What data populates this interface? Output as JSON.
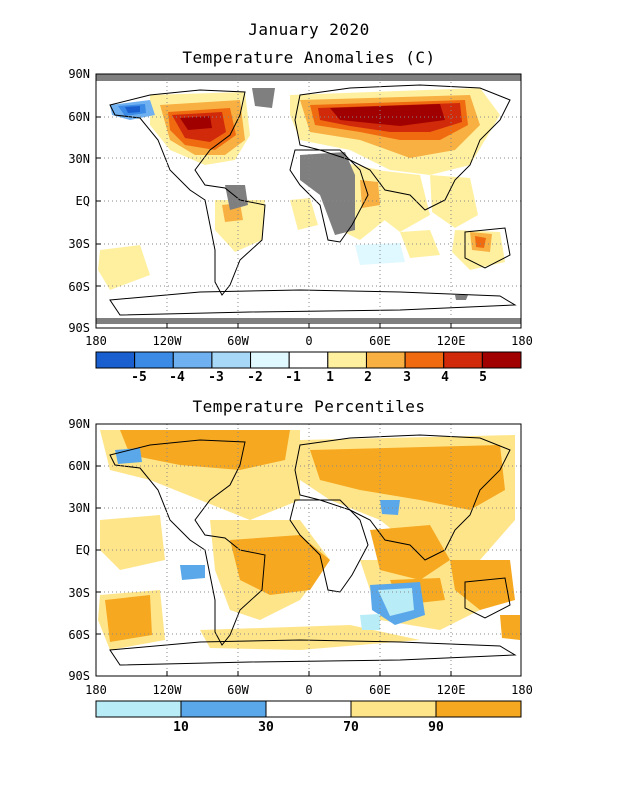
{
  "figure": {
    "title": "January 2020",
    "map1": {
      "title": "Temperature Anomalies (C)",
      "colorbar": {
        "labels": [
          "-5",
          "-4",
          "-3",
          "-2",
          "-1",
          "1",
          "2",
          "3",
          "4",
          "5"
        ],
        "colors": [
          "#1a5fd0",
          "#3a8ae6",
          "#6fb0f0",
          "#a8d8f8",
          "#e0f8ff",
          "#ffffff",
          "#fff0a0",
          "#f7b041",
          "#f06a10",
          "#d02a0a",
          "#a00000"
        ]
      }
    },
    "map2": {
      "title": "Temperature Percentiles",
      "colorbar": {
        "labels": [
          "10",
          "30",
          "70",
          "90"
        ],
        "colors": [
          "#b8ecf6",
          "#5aa8ea",
          "#ffffff",
          "#ffe58a",
          "#f6a820"
        ]
      }
    },
    "axes": {
      "y_ticks": [
        "90N",
        "60N",
        "30N",
        "EQ",
        "30S",
        "60S",
        "90S"
      ],
      "x_ticks": [
        "180",
        "120W",
        "60W",
        "0",
        "60E",
        "120E",
        "180"
      ]
    }
  }
}
